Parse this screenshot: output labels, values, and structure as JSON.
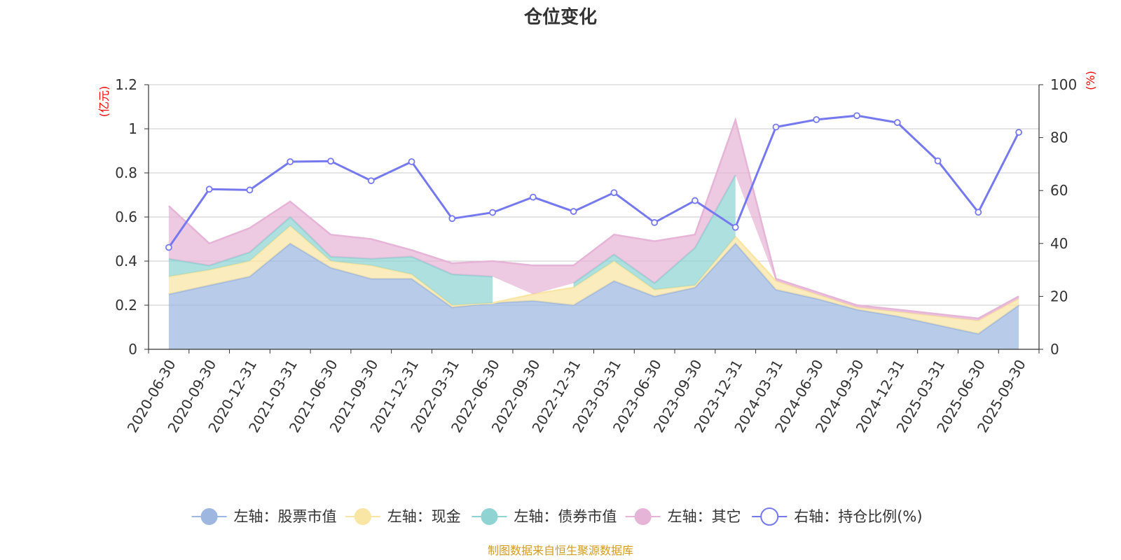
{
  "chart_data": {
    "type": "area",
    "title": "仓位变化",
    "source": "制图数据来自恒生聚源数据库",
    "left_axis": {
      "unit": "(亿元)",
      "min": 0,
      "max": 1.2,
      "ticks": [
        "0",
        "0.2",
        "0.4",
        "0.6",
        "0.8",
        "1",
        "1.2"
      ]
    },
    "right_axis": {
      "unit": "(%)",
      "min": 0,
      "max": 100,
      "ticks": [
        "0",
        "20",
        "40",
        "60",
        "80",
        "100"
      ]
    },
    "categories": [
      "2020-06-30",
      "2020-09-30",
      "2020-12-31",
      "2021-03-31",
      "2021-06-30",
      "2021-09-30",
      "2021-12-31",
      "2022-03-31",
      "2022-06-30",
      "2022-09-30",
      "2022-12-31",
      "2023-03-31",
      "2023-06-30",
      "2023-09-30",
      "2023-12-31",
      "2024-03-31",
      "2024-06-30",
      "2024-09-30",
      "2024-12-31",
      "2025-03-31",
      "2025-06-30",
      "2025-09-30"
    ],
    "series": [
      {
        "name": "左轴：股票市值",
        "axis": "left",
        "stack": true,
        "color": "#9db7e0",
        "values": [
          0.25,
          0.29,
          0.33,
          0.48,
          0.37,
          0.32,
          0.32,
          0.19,
          0.21,
          0.22,
          0.2,
          0.31,
          0.24,
          0.28,
          0.48,
          0.27,
          0.23,
          0.18,
          0.15,
          0.11,
          0.07,
          0.2
        ]
      },
      {
        "name": "左轴：现金",
        "axis": "left",
        "stack": true,
        "color": "#f9e5a4",
        "values": [
          0.08,
          0.07,
          0.07,
          0.08,
          0.03,
          0.06,
          0.02,
          0.01,
          0.0,
          0.03,
          0.08,
          0.09,
          0.03,
          0.01,
          0.03,
          0.04,
          0.02,
          0.01,
          0.02,
          0.04,
          0.06,
          0.03
        ]
      },
      {
        "name": "左轴：债券市值",
        "axis": "left",
        "stack": true,
        "color": "#8fd4d2",
        "values": [
          0.08,
          0.02,
          0.04,
          0.04,
          0.02,
          0.03,
          0.08,
          0.14,
          0.12,
          null,
          0.02,
          0.03,
          0.03,
          0.17,
          0.28,
          null,
          null,
          null,
          null,
          null,
          null,
          null
        ]
      },
      {
        "name": "左轴：其它",
        "axis": "left",
        "stack": true,
        "color": "#e6b4d7",
        "values": [
          0.24,
          0.1,
          0.11,
          0.07,
          0.1,
          0.09,
          0.03,
          0.05,
          0.07,
          0.13,
          0.08,
          0.09,
          0.19,
          0.06,
          0.25,
          0.01,
          0.01,
          0.01,
          0.01,
          0.01,
          0.01,
          0.01
        ]
      },
      {
        "name": "右轴：持仓比例(%)",
        "axis": "right",
        "type": "line",
        "color": "#7679ee",
        "values": [
          38.5,
          60.5,
          60.2,
          70.9,
          71.1,
          63.7,
          70.9,
          49.4,
          51.7,
          57.5,
          52.1,
          59.2,
          47.9,
          56.2,
          46.1,
          84.0,
          86.8,
          88.3,
          85.7,
          71.2,
          51.8,
          82.0
        ]
      }
    ]
  }
}
